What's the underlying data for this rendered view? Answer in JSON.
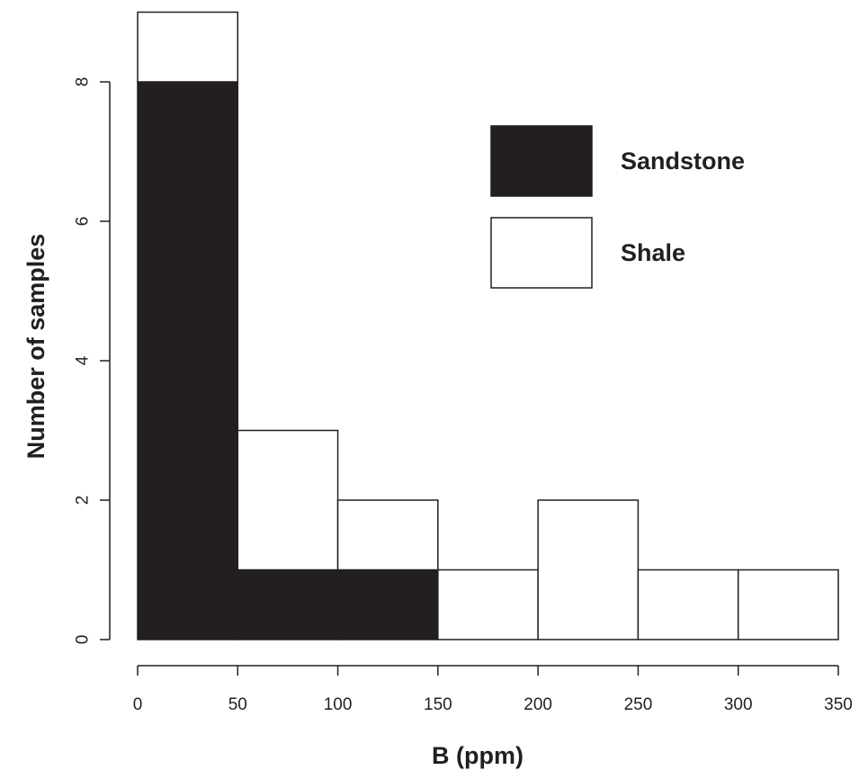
{
  "chart_data": {
    "type": "bar",
    "stacked": true,
    "title": "",
    "xlabel": "B (ppm)",
    "ylabel": "Number of samples",
    "bins": [
      [
        0,
        50
      ],
      [
        50,
        100
      ],
      [
        100,
        150
      ],
      [
        150,
        200
      ],
      [
        200,
        250
      ],
      [
        250,
        300
      ],
      [
        300,
        350
      ]
    ],
    "series": [
      {
        "name": "Sandstone",
        "color": "#231f20",
        "values": [
          8,
          1,
          1,
          0,
          0,
          0,
          0
        ]
      },
      {
        "name": "Shale",
        "color": "#ffffff",
        "values": [
          1,
          2,
          1,
          1,
          2,
          1,
          1
        ]
      }
    ],
    "xlim": [
      0,
      350
    ],
    "ylim": [
      0,
      9
    ],
    "xticks": [
      0,
      50,
      100,
      150,
      200,
      250,
      300,
      350
    ],
    "xtick_labels": [
      "0",
      "50",
      "100",
      "150",
      "200",
      "250",
      "300",
      "350"
    ],
    "yticks": [
      0,
      2,
      4,
      6,
      8
    ],
    "ytick_labels": [
      "0",
      "2",
      "4",
      "6",
      "8"
    ],
    "grid": false,
    "legend_position": "top-right"
  }
}
